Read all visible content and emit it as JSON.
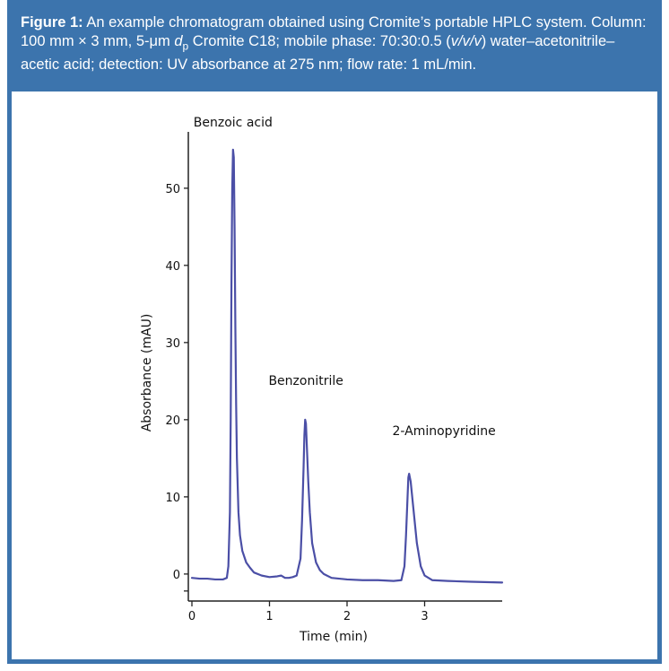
{
  "caption": {
    "label": "Figure 1:",
    "part1": " An example chromatogram obtained using Cromite’s portable HPLC system. Column: 100 mm × 3 mm, 5-μm ",
    "dp_d": "d",
    "dp_sub": "p",
    "part2": " Cromite C18; mobile phase: 70:30:0.5 (",
    "vvv": "v/v/v",
    "part3": ") water–acetonitrile–acetic acid; detection: UV absorbance at 275 nm; flow rate: 1 mL/min."
  },
  "colors": {
    "frame": "#3c74ad",
    "trace": "#4b4fa6"
  },
  "chart_data": {
    "type": "line",
    "title": "",
    "xlabel": "Time (min)",
    "ylabel": "Absorbance (mAU)",
    "xlim": [
      0,
      4.0
    ],
    "ylim": [
      -3.5,
      58
    ],
    "x_ticks": [
      0,
      1,
      2,
      3
    ],
    "y_ticks": [
      0,
      10,
      20,
      30,
      40,
      50
    ],
    "grid": false,
    "series": [
      {
        "x": [
          0.0,
          0.1,
          0.2,
          0.3,
          0.4,
          0.45,
          0.47,
          0.49,
          0.5,
          0.51,
          0.52,
          0.53,
          0.54,
          0.55,
          0.56,
          0.57,
          0.58,
          0.6,
          0.62,
          0.65,
          0.7,
          0.75,
          0.8,
          0.9,
          1.0,
          1.1,
          1.15,
          1.2,
          1.25,
          1.3,
          1.35,
          1.4,
          1.42,
          1.44,
          1.45,
          1.46,
          1.47,
          1.48,
          1.5,
          1.52,
          1.55,
          1.6,
          1.65,
          1.7,
          1.8,
          2.0,
          2.2,
          2.4,
          2.6,
          2.7,
          2.74,
          2.76,
          2.78,
          2.79,
          2.8,
          2.82,
          2.85,
          2.9,
          2.95,
          3.0,
          3.1,
          3.3,
          3.6,
          4.0
        ],
        "y": [
          -0.5,
          -0.6,
          -0.6,
          -0.7,
          -0.7,
          -0.5,
          1.0,
          8.0,
          20.0,
          38.0,
          50.0,
          55.0,
          54.0,
          45.0,
          32.0,
          22.0,
          15.0,
          8.0,
          5.0,
          3.0,
          1.5,
          0.8,
          0.2,
          -0.2,
          -0.4,
          -0.3,
          -0.2,
          -0.5,
          -0.5,
          -0.4,
          -0.2,
          2.0,
          7.0,
          14.0,
          18.0,
          20.0,
          19.5,
          17.0,
          12.0,
          8.0,
          4.0,
          1.5,
          0.5,
          0.0,
          -0.5,
          -0.7,
          -0.8,
          -0.8,
          -0.9,
          -0.8,
          1.0,
          5.0,
          10.0,
          12.5,
          13.0,
          12.0,
          9.0,
          4.0,
          1.0,
          -0.2,
          -0.8,
          -0.9,
          -1.0,
          -1.1
        ]
      }
    ],
    "annotations": [
      {
        "text": "Benzoic acid",
        "x": 0.53,
        "y": 58.0
      },
      {
        "text": "Benzonitrile",
        "x": 1.47,
        "y": 24.5
      },
      {
        "text": "2-Aminopyridine",
        "x": 3.25,
        "y": 18.0
      }
    ]
  }
}
